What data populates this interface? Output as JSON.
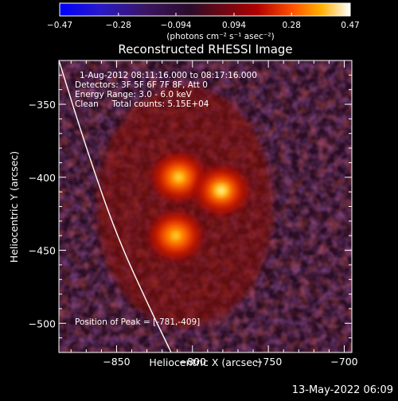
{
  "chart_data": {
    "type": "heatmap",
    "title": "Reconstructed RHESSI Image",
    "colorbar": {
      "ticks": [
        -0.47,
        -0.28,
        -0.094,
        0.094,
        0.28,
        0.47
      ],
      "tick_labels": [
        "−0.47",
        "−0.28",
        "−0.094",
        "0.094",
        "0.28",
        "0.47"
      ],
      "range": [
        -0.47,
        0.47
      ],
      "unit_label": "(photons cm⁻² s⁻¹ asec⁻²)"
    },
    "info_lines": [
      "1-Aug-2012 08:11:16.000 to 08:17:16.000",
      "Detectors: 3F 5F 6F 7F 8F, Att 0",
      "Energy Range: 3.0 - 6.0 keV",
      "Clean     Total counts: 5.15E+04"
    ],
    "peak_label": "Position of Peak = [-781,-409]",
    "xlabel": "Heliocentric X (arcsec)",
    "ylabel": "Heliocentric Y (arcsec)",
    "xlim": [
      -888,
      -695
    ],
    "ylim": [
      -520,
      -320
    ],
    "xticks": [
      -850,
      -800,
      -750,
      -700
    ],
    "xtick_labels": [
      "−850",
      "−800",
      "−750",
      "−700"
    ],
    "yticks": [
      -350,
      -400,
      -450,
      -500
    ],
    "ytick_labels": [
      "−350",
      "−400",
      "−450",
      "−500"
    ],
    "sources": [
      {
        "x": -809,
        "y": -400,
        "peak": 0.4
      },
      {
        "x": -781,
        "y": -409,
        "peak": 0.47
      },
      {
        "x": -811,
        "y": -440,
        "peak": 0.36
      }
    ],
    "limb_curve": [
      [
        -888,
        -320
      ],
      [
        -870,
        -380
      ],
      [
        -850,
        -440
      ],
      [
        -828,
        -490
      ],
      [
        -814,
        -520
      ]
    ],
    "colors": {
      "background": "#000000",
      "cold": "#0000ff",
      "hot": "#ffffff",
      "limb": "#ffffff"
    }
  },
  "footer_timestamp": "13-May-2022 06:09"
}
